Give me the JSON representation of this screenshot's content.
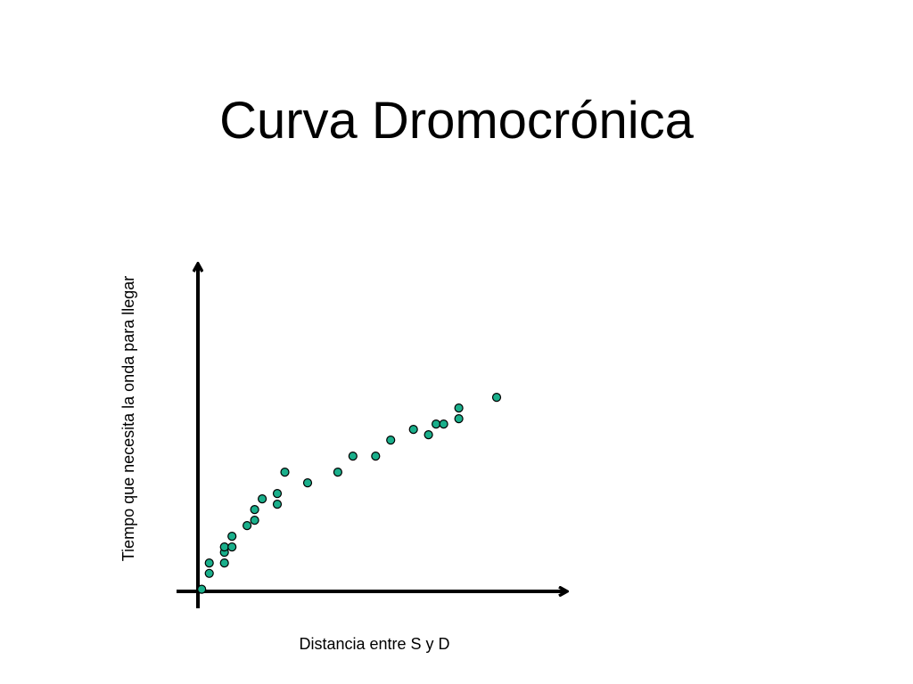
{
  "slide": {
    "title": "Curva Dromocrónica"
  },
  "colors": {
    "point_fill": "#1aaf8b",
    "point_stroke": "#000000",
    "axis": "#000000"
  },
  "chart_data": {
    "type": "scatter",
    "title": "",
    "xlabel": "Distancia entre S y D",
    "ylabel": "Tiempo que necesita la onda para llegar",
    "grid": false,
    "legend": "none",
    "xlim": [
      0,
      100
    ],
    "ylim": [
      0,
      100
    ],
    "series": [
      {
        "points": [
          [
            1,
            1
          ],
          [
            3,
            8.4
          ],
          [
            3,
            13.3
          ],
          [
            7,
            13.3
          ],
          [
            7,
            18.3
          ],
          [
            7,
            20.8
          ],
          [
            9,
            20.8
          ],
          [
            9,
            25.8
          ],
          [
            13,
            30.8
          ],
          [
            15,
            33.3
          ],
          [
            15,
            38.3
          ],
          [
            17,
            43.3
          ],
          [
            21,
            40.8
          ],
          [
            21,
            45.8
          ],
          [
            23,
            55.8
          ],
          [
            29,
            50.8
          ],
          [
            37,
            55.8
          ],
          [
            41,
            63.3
          ],
          [
            47,
            63.3
          ],
          [
            51,
            70.8
          ],
          [
            57,
            75.8
          ],
          [
            61,
            73.3
          ],
          [
            63,
            78.3
          ],
          [
            65,
            78.3
          ],
          [
            69,
            80.8
          ],
          [
            69,
            85.8
          ],
          [
            79,
            90.8
          ]
        ]
      }
    ]
  }
}
